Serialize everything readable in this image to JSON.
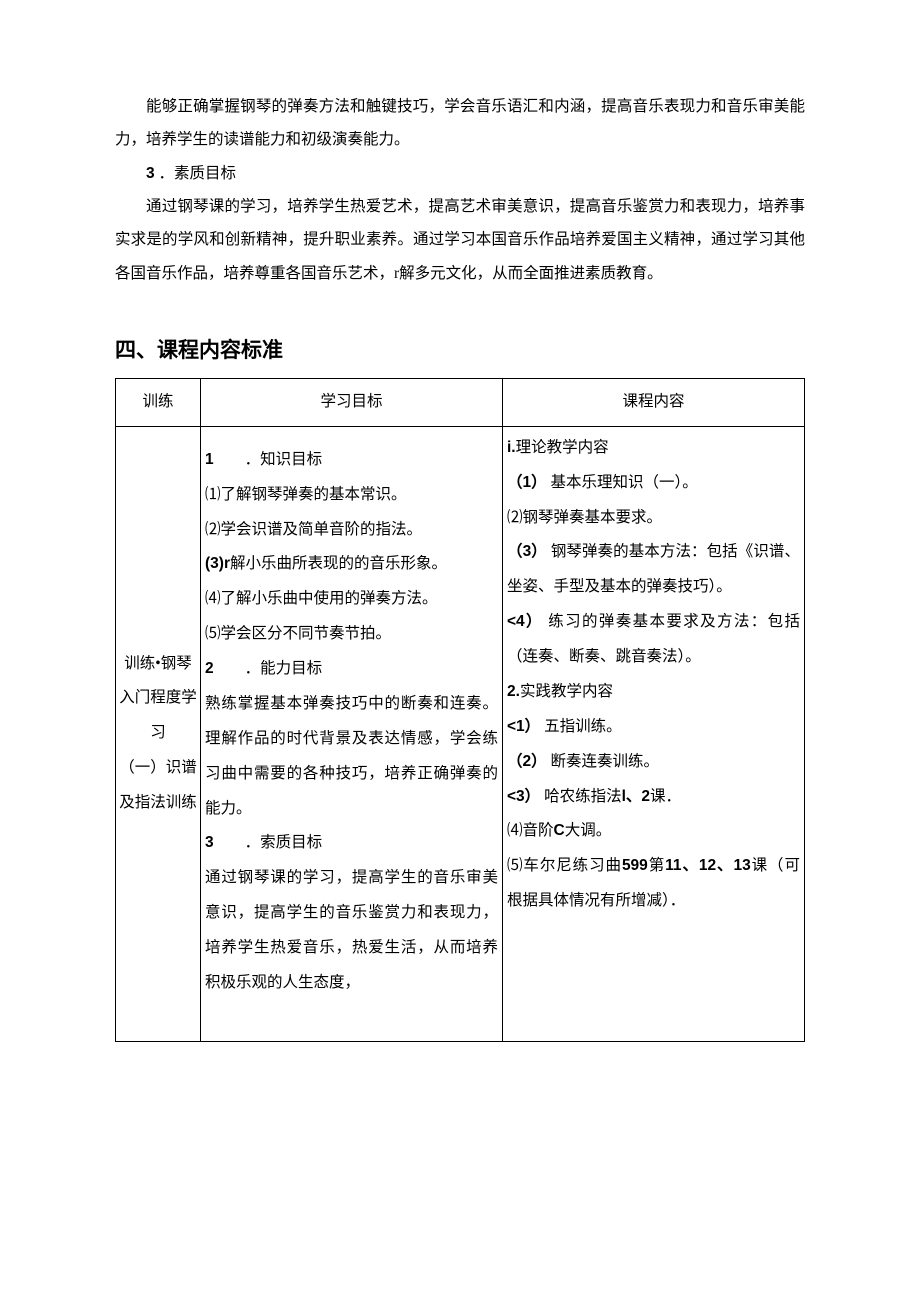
{
  "intro_para": "能够正确掌握钢琴的弹奏方法和触键技巧，学会音乐语汇和内涵，提高音乐表现力和音乐审美能力，培养学生的读谱能力和初级演奏能力。",
  "goal3_label": "3",
  "goal3_title": " ．素质目标",
  "goal3_para": "通过钢琴课的学习，培养学生热爱艺术，提高艺术审美意识，提高音乐鉴赏力和表现力，培养事实求是的学风和创新精神，提升职业素养。通过学习本国音乐作品培养爱国主义精神，通过学习其他各国音乐作品，培养尊重各国音乐艺术，r解多元文化，从而全面推进素质教育。",
  "section4_title": "四、课程内容标准",
  "table": {
    "headers": [
      "训练",
      "学习目标",
      "课程内容"
    ],
    "row1": {
      "train": "训练•钢琴入门程度学习\n（一）识谱及指法训练",
      "goal": {
        "g1_num": "1",
        "g1_title": "　　．知识目标",
        "g1_items": [
          "⑴了解钢琴弹奏的基本常识。",
          "⑵学会识谱及简单音阶的指法。",
          "(3)r",
          "解小乐曲所表现的的音乐形象。",
          "⑷了解小乐曲中使用的弹奏方法。",
          "⑸学会区分不同节奏节拍。"
        ],
        "g2_num": "2",
        "g2_title": "　　．能力目标",
        "g2_para": "熟练掌握基本弹奏技巧中的断奏和连奏。理解作品的时代背景及表达情感，学会练习曲中需要的各种技巧，培养正确弹奏的能力。",
        "g3_num": "3",
        "g3_title": "　　．索质目标",
        "g3_para": "通过钢琴课的学习，提高学生的音乐审美意识，提高学生的音乐鉴赏力和表现力，培养学生热爱音乐，热爱生活，从而培养积极乐观的人生态度，"
      },
      "content": {
        "c_i": "i.",
        "c_i_txt": "理论教学内容",
        "c1_num": "（1）",
        "c1_txt": " 基本乐理知识（一）。",
        "c2_txt": "⑵钢琴弹奏基本要求。",
        "c3_num": "（3）",
        "c3_txt": " 钢琴弹奏的基本方法：包括《识谱、坐姿、手型及基本的弹奏技巧）。",
        "c4_num": "<4）",
        "c4_txt": " 练习的弹奏基本要求及方法：包括（连奏、断奏、跳音奏法）。",
        "c_2": "2.",
        "c_2_txt": "实践教学内容",
        "p1_num": "<1）",
        "p1_txt": " 五指训练。",
        "p2_num": "（2）",
        "p2_txt": " 断奏连奏训练。",
        "p3_num": "<3）",
        "p3_txt_a": " 哈农练指法",
        "p3_txt_b": "l、2",
        "p3_txt_c": "课．",
        "p4_txt_a": "⑷音阶",
        "p4_txt_b": "C",
        "p4_txt_c": "大调。",
        "p5_txt_a": "⑸车尔尼练习曲",
        "p5_txt_b": "599",
        "p5_txt_c": "第",
        "p5_txt_d": "11、12、13",
        "p5_txt_e": "课（可根据具体情况有所增减）．"
      }
    }
  }
}
